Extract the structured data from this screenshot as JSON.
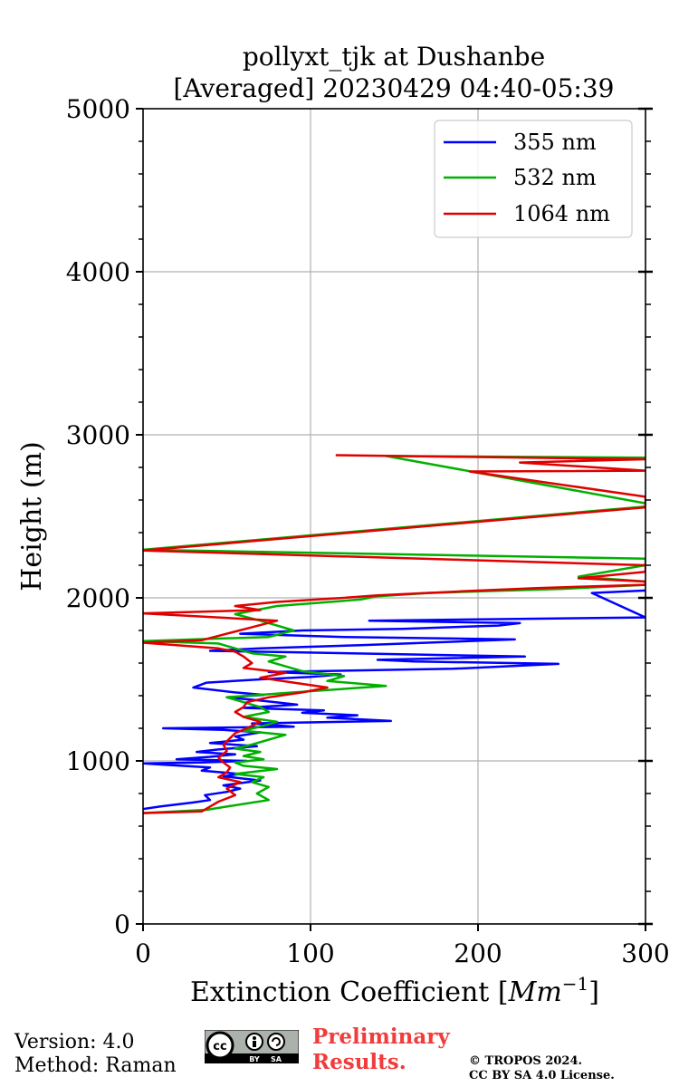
{
  "chart_data": {
    "type": "line",
    "title_line1": "pollyxt_tjk at Dushanbe",
    "title_line2": "[Averaged] 20230429 04:40-05:39",
    "xlabel": "Extinction Coefficient [",
    "xlabel_unit": "Mm",
    "xlabel_exp": "−1",
    "xlabel_end": "]",
    "ylabel": "Height (m)",
    "xlim": [
      0,
      300
    ],
    "ylim": [
      0,
      5000
    ],
    "x_ticks": [
      0,
      100,
      200,
      300
    ],
    "x_tick_labels": [
      "0",
      "100",
      "200",
      "300"
    ],
    "y_ticks": [
      0,
      1000,
      2000,
      3000,
      4000,
      5000
    ],
    "y_tick_labels": [
      "0",
      "1000",
      "2000",
      "3000",
      "4000",
      "5000"
    ],
    "grid": true,
    "legend_position": "top-right",
    "series": [
      {
        "name": "355 nm",
        "color": "#0000ff",
        "points": [
          [
            0,
            705
          ],
          [
            10,
            720
          ],
          [
            30,
            745
          ],
          [
            40,
            760
          ],
          [
            37,
            790
          ],
          [
            50,
            810
          ],
          [
            58,
            830
          ],
          [
            48,
            850
          ],
          [
            70,
            880
          ],
          [
            48,
            905
          ],
          [
            58,
            920
          ],
          [
            35,
            940
          ],
          [
            40,
            960
          ],
          [
            15,
            975
          ],
          [
            0,
            985
          ],
          [
            35,
            990
          ],
          [
            62,
            1000
          ],
          [
            20,
            1010
          ],
          [
            40,
            1025
          ],
          [
            55,
            1040
          ],
          [
            32,
            1055
          ],
          [
            45,
            1070
          ],
          [
            68,
            1090
          ],
          [
            40,
            1110
          ],
          [
            60,
            1130
          ],
          [
            55,
            1150
          ],
          [
            70,
            1175
          ],
          [
            48,
            1190
          ],
          [
            12,
            1200
          ],
          [
            90,
            1210
          ],
          [
            65,
            1230
          ],
          [
            148,
            1245
          ],
          [
            110,
            1265
          ],
          [
            128,
            1280
          ],
          [
            95,
            1295
          ],
          [
            108,
            1310
          ],
          [
            60,
            1325
          ],
          [
            92,
            1345
          ],
          [
            70,
            1370
          ],
          [
            50,
            1390
          ],
          [
            72,
            1405
          ],
          [
            55,
            1420
          ],
          [
            30,
            1450
          ],
          [
            38,
            1480
          ],
          [
            70,
            1500
          ],
          [
            100,
            1515
          ],
          [
            118,
            1530
          ],
          [
            75,
            1545
          ],
          [
            185,
            1565
          ],
          [
            248,
            1595
          ],
          [
            162,
            1610
          ],
          [
            140,
            1620
          ],
          [
            228,
            1640
          ],
          [
            150,
            1655
          ],
          [
            95,
            1665
          ],
          [
            40,
            1675
          ],
          [
            70,
            1690
          ],
          [
            130,
            1710
          ],
          [
            222,
            1745
          ],
          [
            120,
            1760
          ],
          [
            58,
            1780
          ],
          [
            95,
            1800
          ],
          [
            155,
            1810
          ],
          [
            212,
            1830
          ],
          [
            225,
            1845
          ],
          [
            135,
            1860
          ],
          [
            300,
            1880
          ],
          [
            268,
            2030
          ],
          [
            300,
            2045
          ]
        ]
      },
      {
        "name": "532 nm",
        "color": "#00b000",
        "points": [
          [
            0,
            680
          ],
          [
            38,
            700
          ],
          [
            50,
            720
          ],
          [
            75,
            760
          ],
          [
            68,
            800
          ],
          [
            75,
            840
          ],
          [
            65,
            870
          ],
          [
            72,
            900
          ],
          [
            55,
            920
          ],
          [
            80,
            950
          ],
          [
            60,
            970
          ],
          [
            55,
            990
          ],
          [
            72,
            1010
          ],
          [
            60,
            1030
          ],
          [
            70,
            1055
          ],
          [
            55,
            1075
          ],
          [
            65,
            1100
          ],
          [
            75,
            1130
          ],
          [
            85,
            1160
          ],
          [
            60,
            1185
          ],
          [
            70,
            1210
          ],
          [
            80,
            1240
          ],
          [
            60,
            1270
          ],
          [
            75,
            1300
          ],
          [
            70,
            1330
          ],
          [
            60,
            1360
          ],
          [
            50,
            1390
          ],
          [
            90,
            1420
          ],
          [
            145,
            1460
          ],
          [
            110,
            1490
          ],
          [
            120,
            1520
          ],
          [
            95,
            1550
          ],
          [
            85,
            1580
          ],
          [
            75,
            1610
          ],
          [
            85,
            1640
          ],
          [
            65,
            1660
          ],
          [
            55,
            1690
          ],
          [
            45,
            1720
          ],
          [
            0,
            1735
          ],
          [
            75,
            1760
          ],
          [
            90,
            1800
          ],
          [
            70,
            1860
          ],
          [
            55,
            1900
          ],
          [
            80,
            1950
          ],
          [
            130,
            1990
          ],
          [
            140,
            2010
          ],
          [
            170,
            2030
          ],
          [
            250,
            2055
          ],
          [
            300,
            2080
          ],
          [
            300,
            2100
          ],
          [
            260,
            2130
          ],
          [
            300,
            2200
          ],
          [
            300,
            2240
          ],
          [
            0,
            2295
          ],
          [
            300,
            2560
          ],
          [
            300,
            2580
          ],
          [
            145,
            2870
          ],
          [
            300,
            2860
          ]
        ]
      },
      {
        "name": "1064 nm",
        "color": "#e00000",
        "points": [
          [
            0,
            680
          ],
          [
            35,
            690
          ],
          [
            40,
            720
          ],
          [
            45,
            750
          ],
          [
            55,
            790
          ],
          [
            50,
            830
          ],
          [
            58,
            870
          ],
          [
            45,
            900
          ],
          [
            50,
            930
          ],
          [
            52,
            960
          ],
          [
            48,
            990
          ],
          [
            45,
            1020
          ],
          [
            50,
            1060
          ],
          [
            48,
            1100
          ],
          [
            52,
            1140
          ],
          [
            55,
            1170
          ],
          [
            62,
            1200
          ],
          [
            70,
            1240
          ],
          [
            60,
            1270
          ],
          [
            55,
            1300
          ],
          [
            60,
            1330
          ],
          [
            62,
            1360
          ],
          [
            75,
            1390
          ],
          [
            95,
            1420
          ],
          [
            110,
            1450
          ],
          [
            90,
            1480
          ],
          [
            70,
            1510
          ],
          [
            85,
            1540
          ],
          [
            60,
            1570
          ],
          [
            65,
            1600
          ],
          [
            60,
            1640
          ],
          [
            55,
            1670
          ],
          [
            45,
            1690
          ],
          [
            20,
            1710
          ],
          [
            0,
            1725
          ],
          [
            35,
            1740
          ],
          [
            50,
            1780
          ],
          [
            65,
            1820
          ],
          [
            80,
            1860
          ],
          [
            0,
            1905
          ],
          [
            70,
            1925
          ],
          [
            55,
            1950
          ],
          [
            80,
            1975
          ],
          [
            120,
            2000
          ],
          [
            140,
            2015
          ],
          [
            190,
            2040
          ],
          [
            235,
            2060
          ],
          [
            300,
            2080
          ],
          [
            300,
            2100
          ],
          [
            260,
            2120
          ],
          [
            300,
            2160
          ],
          [
            300,
            2200
          ],
          [
            0,
            2290
          ],
          [
            300,
            2555
          ],
          [
            300,
            2580
          ],
          [
            300,
            2620
          ],
          [
            195,
            2775
          ],
          [
            300,
            2780
          ],
          [
            225,
            2830
          ],
          [
            300,
            2850
          ],
          [
            115,
            2875
          ]
        ]
      }
    ]
  },
  "footer": {
    "version": "Version: 4.0",
    "method": "Method: Raman",
    "cc_label": "cc",
    "cc_by": "BY",
    "cc_sa": "SA",
    "preliminary_line1": "Preliminary",
    "preliminary_line2": "Results.",
    "copyright_line1": "© TROPOS 2024.",
    "copyright_line2": "CC BY SA 4.0 License."
  }
}
